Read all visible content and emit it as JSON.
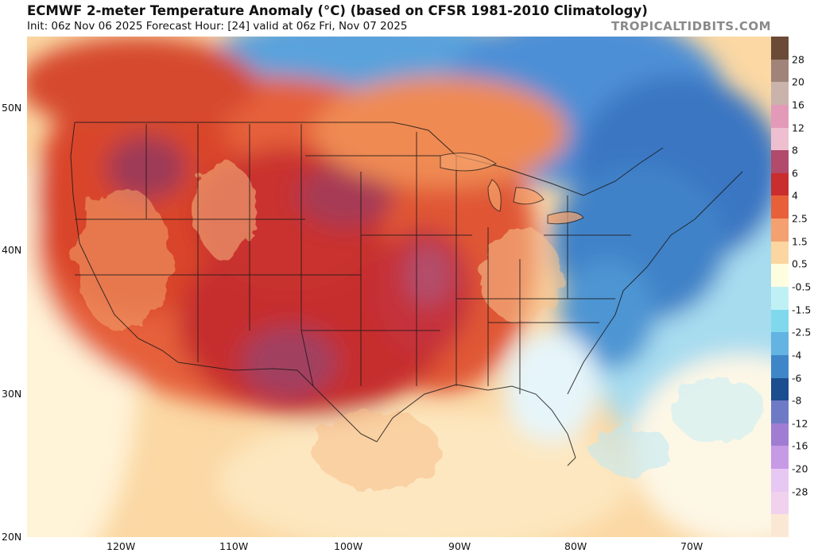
{
  "header": {
    "title": "ECMWF 2-meter Temperature Anomaly (°C) (based on CFSR 1981-2010 Climatology)",
    "subtitle": "Init: 06z Nov 06 2025   Forecast Hour: [24]   valid at 06z Fri, Nov 07 2025",
    "brand": "TROPICALTIDBITS.COM"
  },
  "axes": {
    "lat_labels": [
      "50N",
      "40N",
      "30N",
      "20N"
    ],
    "lon_labels": [
      "120W",
      "110W",
      "100W",
      "90W",
      "80W",
      "70W"
    ]
  },
  "colorbar": {
    "labels": [
      "28",
      "20",
      "16",
      "12",
      "8",
      "6",
      "4",
      "2.5",
      "1.5",
      "0.5",
      "-0.5",
      "-1.5",
      "-2.5",
      "-4",
      "-6",
      "-8",
      "-12",
      "-16",
      "-20",
      "-28"
    ],
    "colors": [
      "#6b4a36",
      "#a08479",
      "#c9b3ab",
      "#e39ab8",
      "#eebfd1",
      "#b14a6b",
      "#c92d2d",
      "#e8603a",
      "#f4a070",
      "#fbd6a0",
      "#fffde0",
      "#bff1f4",
      "#7fd8ec",
      "#63b3e3",
      "#3f86c9",
      "#1b4d8f",
      "#6f7ac6",
      "#a07dd3",
      "#c79ae6",
      "#e7c8f3",
      "#f0d2ee",
      "#fbe8d4"
    ]
  },
  "map": {
    "region": "Continental United States",
    "anomaly_summary": {
      "west_central_us": "warm",
      "southern_plains": "very warm",
      "northeast_us": "cold",
      "atlantic_offshore": "cool",
      "canada_east": "cold"
    }
  }
}
